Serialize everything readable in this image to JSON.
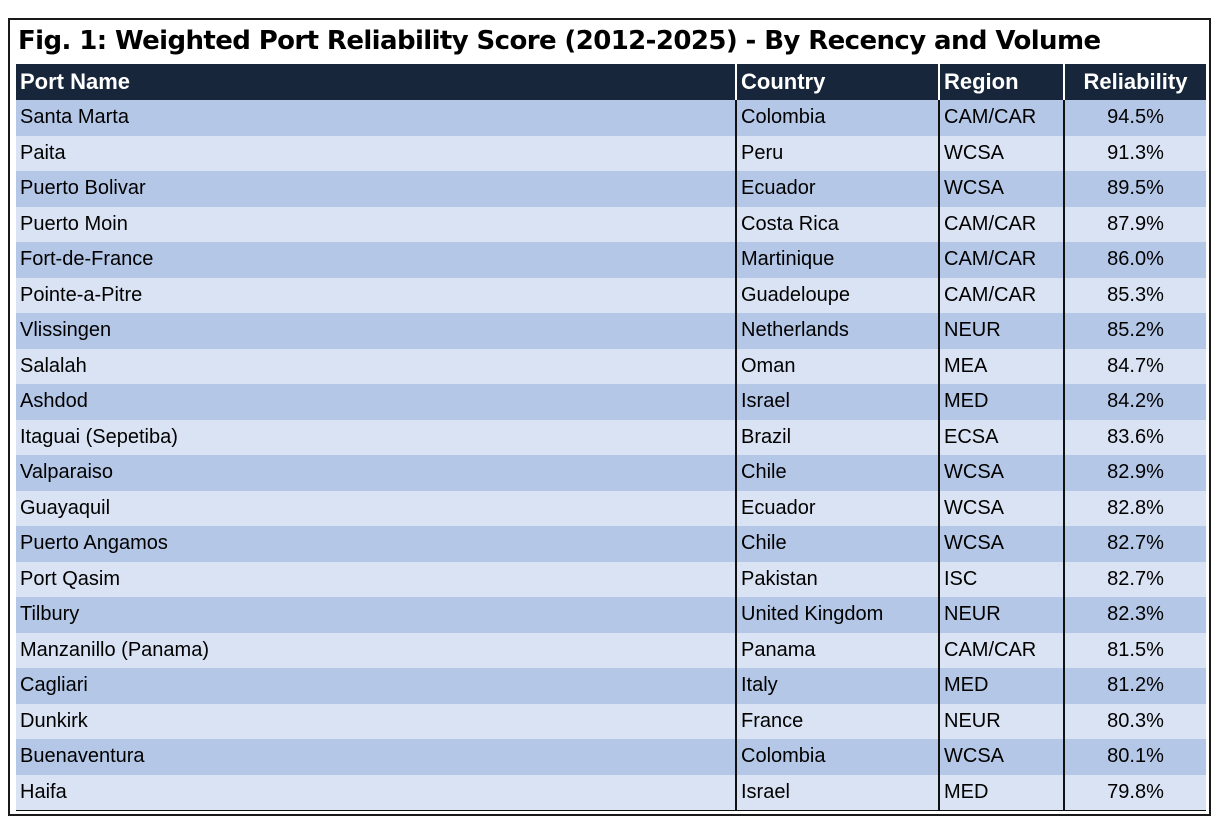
{
  "chart_data": {
    "type": "table",
    "title": "Fig. 1: Weighted Port Reliability Score (2012-2025) - By Recency and Volume",
    "columns": [
      "Port Name",
      "Country",
      "Region",
      "Reliability"
    ],
    "rows": [
      [
        "Santa Marta",
        "Colombia",
        "CAM/CAR",
        "94.5%"
      ],
      [
        "Paita",
        "Peru",
        "WCSA",
        "91.3%"
      ],
      [
        "Puerto Bolivar",
        "Ecuador",
        "WCSA",
        "89.5%"
      ],
      [
        "Puerto Moin",
        "Costa Rica",
        "CAM/CAR",
        "87.9%"
      ],
      [
        "Fort-de-France",
        "Martinique",
        "CAM/CAR",
        "86.0%"
      ],
      [
        "Pointe-a-Pitre",
        "Guadeloupe",
        "CAM/CAR",
        "85.3%"
      ],
      [
        "Vlissingen",
        "Netherlands",
        "NEUR",
        "85.2%"
      ],
      [
        "Salalah",
        "Oman",
        "MEA",
        "84.7%"
      ],
      [
        "Ashdod",
        "Israel",
        "MED",
        "84.2%"
      ],
      [
        "Itaguai (Sepetiba)",
        "Brazil",
        "ECSA",
        "83.6%"
      ],
      [
        "Valparaiso",
        "Chile",
        "WCSA",
        "82.9%"
      ],
      [
        "Guayaquil",
        "Ecuador",
        "WCSA",
        "82.8%"
      ],
      [
        "Puerto Angamos",
        "Chile",
        "WCSA",
        "82.7%"
      ],
      [
        "Port Qasim",
        "Pakistan",
        "ISC",
        "82.7%"
      ],
      [
        "Tilbury",
        "United Kingdom",
        "NEUR",
        "82.3%"
      ],
      [
        "Manzanillo (Panama)",
        "Panama",
        "CAM/CAR",
        "81.5%"
      ],
      [
        "Cagliari",
        "Italy",
        "MED",
        "81.2%"
      ],
      [
        "Dunkirk",
        "France",
        "NEUR",
        "80.3%"
      ],
      [
        "Buenaventura",
        "Colombia",
        "WCSA",
        "80.1%"
      ],
      [
        "Haifa",
        "Israel",
        "MED",
        "79.8%"
      ]
    ],
    "colors": {
      "header_bg": "#17263a",
      "header_text": "#ffffff",
      "row_odd": "#b4c7e7",
      "row_even": "#dae3f3"
    }
  }
}
